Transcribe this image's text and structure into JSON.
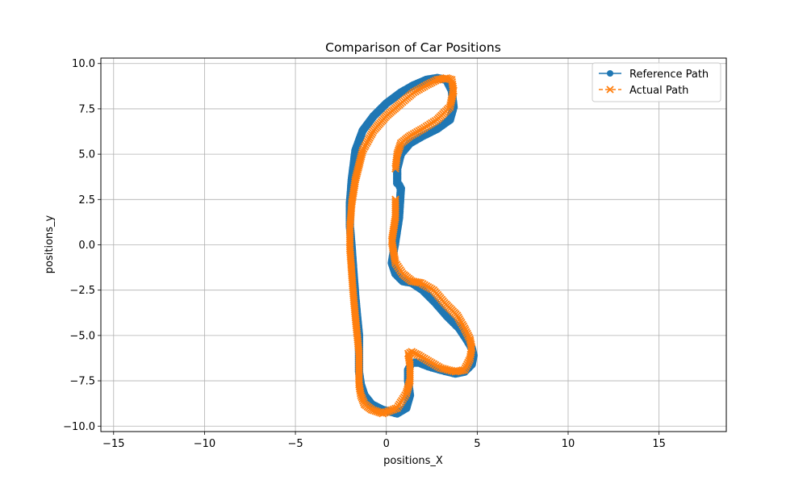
{
  "chart_data": {
    "type": "line",
    "title": "Comparison of Car Positions",
    "xlabel": "positions_X",
    "ylabel": "positions_y",
    "xlim": [
      -15.7,
      18.7
    ],
    "ylim": [
      -10.3,
      10.3
    ],
    "xticks": [
      -15,
      -10,
      -5,
      0,
      5,
      10,
      15
    ],
    "yticks": [
      -10.0,
      -7.5,
      -5.0,
      -2.5,
      0.0,
      2.5,
      5.0,
      7.5,
      10.0
    ],
    "xtick_labels": [
      "−15",
      "−10",
      "−5",
      "0",
      "5",
      "10",
      "15"
    ],
    "ytick_labels": [
      "−10.0",
      "−7.5",
      "−5.0",
      "−2.5",
      "0.0",
      "2.5",
      "5.0",
      "7.5",
      "10.0"
    ],
    "grid": true,
    "legend_position": "top-right",
    "series": [
      {
        "name": "Reference Path",
        "color": "#1f77b4",
        "marker": "circle",
        "linestyle": "solid",
        "x": [
          0.8,
          0.7,
          0.5,
          0.3,
          0.5,
          0.9,
          1.4,
          2.0,
          2.7,
          3.3,
          4.0,
          4.4,
          4.7,
          4.8,
          4.7,
          4.3,
          3.8,
          3.0,
          2.3,
          1.8,
          1.4,
          1.2,
          1.2,
          1.3,
          1.1,
          0.6,
          -0.2,
          -0.8,
          -1.2,
          -1.4,
          -1.5,
          -1.5,
          -1.5,
          -1.6,
          -1.7,
          -1.8,
          -1.9,
          -2.0,
          -2.0,
          -1.9,
          -1.7,
          -1.3,
          -0.7,
          0.0,
          0.8,
          1.5,
          2.2,
          2.8,
          3.3,
          3.6,
          3.7,
          3.5,
          2.8,
          2.0,
          1.3,
          0.8,
          0.6,
          0.6,
          0.7,
          0.8
        ],
        "y": [
          3.1,
          1.5,
          0.2,
          -1.0,
          -1.6,
          -2.0,
          -2.1,
          -2.5,
          -3.2,
          -3.9,
          -4.6,
          -5.2,
          -5.7,
          -6.1,
          -6.6,
          -7.0,
          -7.1,
          -6.9,
          -6.7,
          -6.5,
          -6.5,
          -6.9,
          -7.5,
          -8.3,
          -9.0,
          -9.3,
          -9.1,
          -8.8,
          -8.3,
          -7.7,
          -7.0,
          -6.0,
          -5.0,
          -4.0,
          -2.9,
          -1.6,
          -0.2,
          1.0,
          2.3,
          3.6,
          5.2,
          6.3,
          7.1,
          7.8,
          8.4,
          8.8,
          9.1,
          9.2,
          9.1,
          8.5,
          7.6,
          6.9,
          6.4,
          6.0,
          5.6,
          5.0,
          4.2,
          3.4,
          3.3,
          3.1
        ]
      },
      {
        "name": "Actual Path",
        "color": "#ff7f0e",
        "marker": "x",
        "linestyle": "dashed",
        "x": [
          0.5,
          0.5,
          0.3,
          0.5,
          0.9,
          1.4,
          1.9,
          2.6,
          3.2,
          3.9,
          4.3,
          4.6,
          4.7,
          4.6,
          4.3,
          3.8,
          3.0,
          2.3,
          1.8,
          1.4,
          1.2,
          1.3,
          1.3,
          1.1,
          0.6,
          -0.2,
          -0.8,
          -1.2,
          -1.4,
          -1.5,
          -1.5,
          -1.5,
          -1.6,
          -1.7,
          -1.8,
          -1.9,
          -2.0,
          -2.0,
          -1.9,
          -1.7,
          -1.3,
          -0.7,
          0.0,
          0.8,
          1.5,
          2.2,
          2.8,
          3.3,
          3.6,
          3.7,
          3.5,
          2.8,
          2.0,
          1.3,
          0.8,
          0.6,
          0.5
        ],
        "y": [
          2.5,
          1.5,
          0.2,
          -1.0,
          -1.6,
          -2.0,
          -2.1,
          -2.5,
          -3.2,
          -3.9,
          -4.6,
          -5.2,
          -5.7,
          -6.3,
          -6.9,
          -7.0,
          -6.8,
          -6.4,
          -6.1,
          -5.9,
          -6.0,
          -6.6,
          -7.5,
          -8.2,
          -9.0,
          -9.3,
          -9.1,
          -8.8,
          -8.3,
          -7.7,
          -7.0,
          -6.0,
          -5.0,
          -4.0,
          -2.9,
          -1.6,
          -0.2,
          1.0,
          2.3,
          3.6,
          5.2,
          6.3,
          7.1,
          7.8,
          8.4,
          8.8,
          9.1,
          9.2,
          9.1,
          8.5,
          7.6,
          6.9,
          6.4,
          6.0,
          5.6,
          5.0,
          4.2
        ]
      }
    ]
  }
}
